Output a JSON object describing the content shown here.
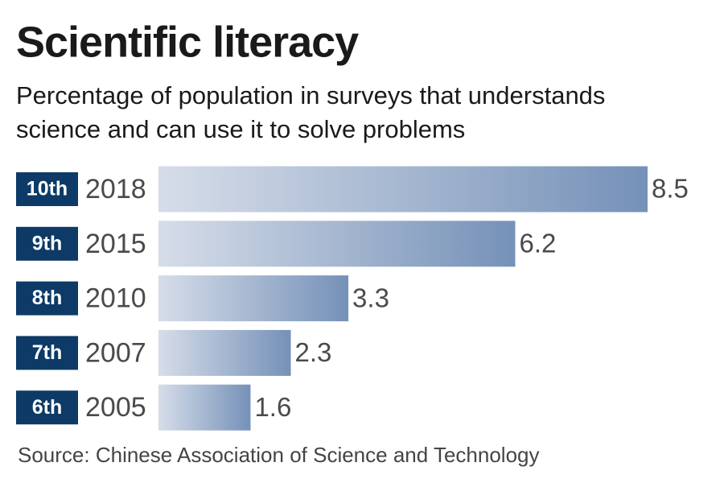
{
  "chart_data": {
    "type": "bar",
    "orientation": "horizontal",
    "title": "Scientific literacy",
    "subtitle": [
      "Percentage of population in surveys that understands",
      "science and can use it to solve problems"
    ],
    "ranks": [
      "10th",
      "9th",
      "8th",
      "7th",
      "6th"
    ],
    "categories": [
      "2018",
      "2015",
      "2010",
      "2007",
      "2005"
    ],
    "values": [
      8.5,
      6.2,
      3.3,
      2.3,
      1.6
    ],
    "color": "#7591b8",
    "gradient_start": "#d6dde9",
    "rank_color": "#0d3a66",
    "source": "Source: Chinese Association of Science and Technology"
  }
}
